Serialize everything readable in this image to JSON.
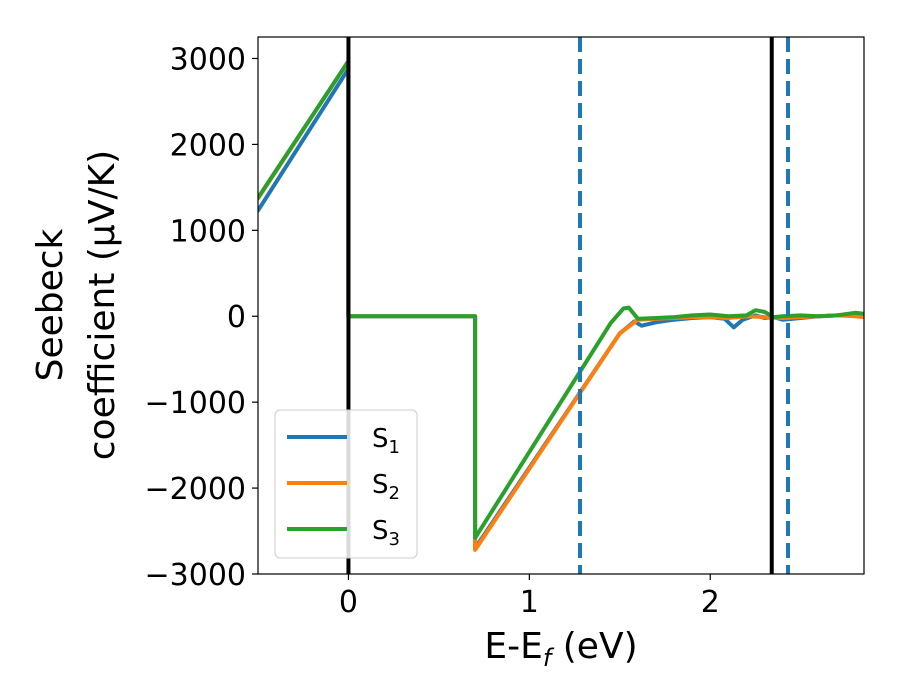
{
  "chart_data": {
    "type": "line",
    "xlabel": "E-E",
    "xlabel_sub": "f",
    "xlabel_unit": " (eV)",
    "ylabel_line1": "Seebeck",
    "ylabel_line2": "coefficient  (μV/K)",
    "xlim": [
      -0.5,
      2.85
    ],
    "ylim": [
      -3000,
      3250
    ],
    "x_ticks": [
      0,
      1,
      2
    ],
    "x_tick_labels": [
      "0",
      "1",
      "2"
    ],
    "y_ticks": [
      -3000,
      -2000,
      -1000,
      0,
      1000,
      2000,
      3000
    ],
    "y_tick_labels": [
      "−3000",
      "−2000",
      "−1000",
      "0",
      "1000",
      "2000",
      "3000"
    ],
    "grid": false,
    "legend_position": "lower-left",
    "vlines": [
      {
        "x": 0.0,
        "style": "solid",
        "color": "#000000"
      },
      {
        "x": 2.34,
        "style": "solid",
        "color": "#000000"
      },
      {
        "x": 1.28,
        "style": "dashed",
        "color": "#1f77b4"
      },
      {
        "x": 2.43,
        "style": "dashed",
        "color": "#1f77b4"
      }
    ],
    "series": [
      {
        "name": "S",
        "sub": "1",
        "color": "#1f77b4",
        "points": [
          [
            -0.5,
            1230
          ],
          [
            0.0,
            2880
          ],
          [
            0.0,
            0
          ],
          [
            0.7,
            0
          ],
          [
            0.7,
            -2700
          ],
          [
            1.5,
            -200
          ],
          [
            1.58,
            -60
          ],
          [
            1.62,
            -110
          ],
          [
            1.7,
            -70
          ],
          [
            1.8,
            -40
          ],
          [
            1.9,
            -20
          ],
          [
            2.0,
            -10
          ],
          [
            2.08,
            -30
          ],
          [
            2.13,
            -130
          ],
          [
            2.18,
            -40
          ],
          [
            2.25,
            10
          ],
          [
            2.3,
            -20
          ],
          [
            2.35,
            -10
          ],
          [
            2.4,
            -40
          ],
          [
            2.5,
            -20
          ],
          [
            2.6,
            0
          ],
          [
            2.7,
            10
          ],
          [
            2.8,
            20
          ],
          [
            2.85,
            10
          ]
        ]
      },
      {
        "name": "S",
        "sub": "2",
        "color": "#ff7f0e",
        "points": [
          [
            -0.5,
            1370
          ],
          [
            0.0,
            2970
          ],
          [
            0.0,
            0
          ],
          [
            0.7,
            0
          ],
          [
            0.7,
            -2720
          ],
          [
            1.5,
            -200
          ],
          [
            1.6,
            -40
          ],
          [
            1.7,
            -30
          ],
          [
            1.8,
            -20
          ],
          [
            1.9,
            -10
          ],
          [
            2.0,
            -10
          ],
          [
            2.1,
            -20
          ],
          [
            2.2,
            0
          ],
          [
            2.3,
            -10
          ],
          [
            2.4,
            -20
          ],
          [
            2.5,
            -10
          ],
          [
            2.6,
            0
          ],
          [
            2.7,
            10
          ],
          [
            2.8,
            0
          ],
          [
            2.85,
            -10
          ]
        ]
      },
      {
        "name": "S",
        "sub": "3",
        "color": "#2ca02c",
        "points": [
          [
            -0.5,
            1380
          ],
          [
            0.0,
            2970
          ],
          [
            0.0,
            0
          ],
          [
            0.7,
            0
          ],
          [
            0.7,
            -2580
          ],
          [
            1.45,
            -80
          ],
          [
            1.52,
            90
          ],
          [
            1.55,
            100
          ],
          [
            1.6,
            -30
          ],
          [
            1.7,
            -20
          ],
          [
            1.8,
            -10
          ],
          [
            1.9,
            10
          ],
          [
            2.0,
            20
          ],
          [
            2.1,
            0
          ],
          [
            2.2,
            10
          ],
          [
            2.25,
            70
          ],
          [
            2.3,
            50
          ],
          [
            2.35,
            -10
          ],
          [
            2.4,
            0
          ],
          [
            2.5,
            10
          ],
          [
            2.6,
            0
          ],
          [
            2.7,
            10
          ],
          [
            2.8,
            40
          ],
          [
            2.85,
            30
          ]
        ]
      }
    ]
  }
}
